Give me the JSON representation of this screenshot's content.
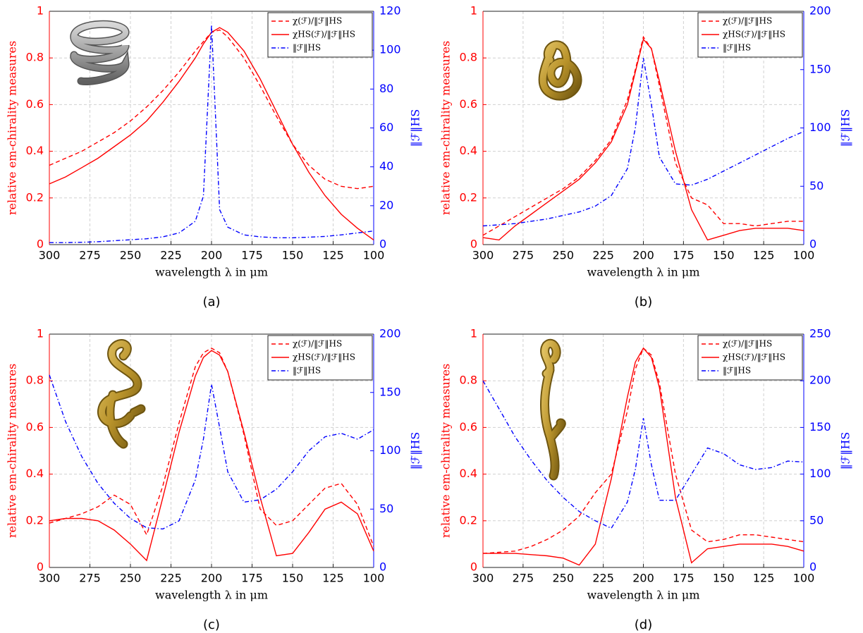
{
  "chart_data": [
    {
      "type": "line",
      "caption": "(a)",
      "xlabel": "wavelength λ in μm",
      "ylabel": "relative em-chirality measures",
      "y2label": "‖ℱ‖HS",
      "x": [
        300,
        290,
        280,
        270,
        260,
        250,
        240,
        230,
        220,
        210,
        205,
        200,
        195,
        190,
        180,
        170,
        160,
        150,
        140,
        130,
        120,
        110,
        100
      ],
      "xlim": [
        300,
        100
      ],
      "xticks": [
        300,
        275,
        250,
        225,
        200,
        175,
        150,
        125,
        100
      ],
      "ylim": [
        0,
        1
      ],
      "yticks": [
        0,
        0.2,
        0.4,
        0.6,
        0.8,
        1
      ],
      "y2lim": [
        0,
        120
      ],
      "y2ticks": [
        0,
        20,
        40,
        60,
        80,
        100,
        120
      ],
      "grid": true,
      "legend": "upper right",
      "series": [
        {
          "name": "χ(ℱ)/‖ℱ‖HS",
          "color": "#ff0000",
          "linestyle": "dashed",
          "values": [
            0.34,
            0.37,
            0.4,
            0.44,
            0.48,
            0.53,
            0.59,
            0.66,
            0.74,
            0.83,
            0.87,
            0.91,
            0.92,
            0.89,
            0.8,
            0.68,
            0.55,
            0.43,
            0.34,
            0.28,
            0.25,
            0.24,
            0.25
          ]
        },
        {
          "name": "χHS(ℱ)/‖ℱ‖HS",
          "color": "#ff0000",
          "linestyle": "solid",
          "values": [
            0.26,
            0.29,
            0.33,
            0.37,
            0.42,
            0.47,
            0.53,
            0.61,
            0.7,
            0.8,
            0.86,
            0.91,
            0.93,
            0.91,
            0.83,
            0.71,
            0.57,
            0.43,
            0.31,
            0.21,
            0.13,
            0.07,
            0.02
          ]
        },
        {
          "name": "‖ℱ‖HS",
          "color": "#0000ff",
          "linestyle": "dashdot",
          "axis": "y2",
          "values": [
            1,
            1,
            1.2,
            1.5,
            2,
            2.5,
            3,
            4,
            6,
            12,
            25,
            113,
            18,
            9,
            5,
            4,
            3.5,
            3.5,
            3.8,
            4.2,
            5,
            6,
            7
          ]
        }
      ]
    },
    {
      "type": "line",
      "caption": "(b)",
      "xlabel": "wavelength λ in μm",
      "ylabel": "relative em-chirality measures",
      "y2label": "‖ℱ‖HS",
      "x": [
        300,
        290,
        280,
        270,
        260,
        250,
        240,
        230,
        220,
        210,
        205,
        200,
        195,
        190,
        180,
        170,
        160,
        150,
        140,
        130,
        120,
        110,
        100
      ],
      "xlim": [
        300,
        100
      ],
      "xticks": [
        300,
        275,
        250,
        225,
        200,
        175,
        150,
        125,
        100
      ],
      "ylim": [
        0,
        1
      ],
      "yticks": [
        0,
        0.2,
        0.4,
        0.6,
        0.8,
        1
      ],
      "y2lim": [
        0,
        200
      ],
      "y2ticks": [
        0,
        50,
        100,
        150,
        200
      ],
      "grid": true,
      "legend": "upper right",
      "series": [
        {
          "name": "χ(ℱ)/‖ℱ‖HS",
          "color": "#ff0000",
          "linestyle": "dashed",
          "values": [
            0.04,
            0.08,
            0.12,
            0.16,
            0.2,
            0.24,
            0.29,
            0.36,
            0.45,
            0.62,
            0.75,
            0.89,
            0.84,
            0.68,
            0.35,
            0.2,
            0.17,
            0.09,
            0.09,
            0.08,
            0.09,
            0.1,
            0.1
          ]
        },
        {
          "name": "χHS(ℱ)/‖ℱ‖HS",
          "color": "#ff0000",
          "linestyle": "solid",
          "values": [
            0.03,
            0.02,
            0.08,
            0.13,
            0.18,
            0.23,
            0.28,
            0.35,
            0.44,
            0.6,
            0.74,
            0.88,
            0.84,
            0.7,
            0.4,
            0.15,
            0.02,
            0.04,
            0.06,
            0.07,
            0.07,
            0.07,
            0.06
          ]
        },
        {
          "name": "‖ℱ‖HS",
          "color": "#0000ff",
          "linestyle": "dashdot",
          "axis": "y2",
          "values": [
            16,
            17,
            18,
            20,
            22,
            25,
            28,
            33,
            42,
            65,
            100,
            160,
            120,
            75,
            52,
            51,
            56,
            63,
            70,
            77,
            84,
            91,
            97
          ]
        }
      ]
    },
    {
      "type": "line",
      "caption": "(c)",
      "xlabel": "wavelength λ in μm",
      "ylabel": "relative em-chirality measures",
      "y2label": "‖ℱ‖HS",
      "x": [
        300,
        290,
        280,
        270,
        260,
        250,
        240,
        230,
        220,
        210,
        205,
        200,
        195,
        190,
        180,
        170,
        160,
        150,
        140,
        130,
        120,
        110,
        100
      ],
      "xlim": [
        300,
        100
      ],
      "xticks": [
        300,
        275,
        250,
        225,
        200,
        175,
        150,
        125,
        100
      ],
      "ylim": [
        0,
        1
      ],
      "yticks": [
        0,
        0.2,
        0.4,
        0.6,
        0.8,
        1
      ],
      "y2lim": [
        0,
        200
      ],
      "y2ticks": [
        0,
        50,
        100,
        150,
        200
      ],
      "grid": true,
      "legend": "upper right",
      "series": [
        {
          "name": "χ(ℱ)/‖ℱ‖HS",
          "color": "#ff0000",
          "linestyle": "dashed",
          "values": [
            0.19,
            0.21,
            0.23,
            0.26,
            0.31,
            0.27,
            0.14,
            0.35,
            0.62,
            0.86,
            0.92,
            0.94,
            0.92,
            0.84,
            0.57,
            0.25,
            0.18,
            0.2,
            0.27,
            0.34,
            0.36,
            0.27,
            0.09
          ]
        },
        {
          "name": "χHS(ℱ)/‖ℱ‖HS",
          "color": "#ff0000",
          "linestyle": "solid",
          "values": [
            0.2,
            0.21,
            0.21,
            0.2,
            0.16,
            0.1,
            0.03,
            0.3,
            0.58,
            0.82,
            0.9,
            0.93,
            0.91,
            0.84,
            0.58,
            0.3,
            0.05,
            0.06,
            0.15,
            0.25,
            0.28,
            0.23,
            0.07
          ]
        },
        {
          "name": "‖ℱ‖HS",
          "color": "#0000ff",
          "linestyle": "dashdot",
          "axis": "y2",
          "values": [
            165,
            125,
            95,
            72,
            55,
            42,
            34,
            33,
            40,
            75,
            110,
            157,
            120,
            82,
            56,
            58,
            67,
            82,
            100,
            112,
            115,
            110,
            118
          ]
        }
      ]
    },
    {
      "type": "line",
      "caption": "(d)",
      "xlabel": "wavelength λ in μm",
      "ylabel": "relative em-chirality measures",
      "y2label": "‖ℱ‖HS",
      "x": [
        300,
        290,
        280,
        270,
        260,
        250,
        240,
        230,
        220,
        210,
        205,
        200,
        195,
        190,
        180,
        170,
        160,
        150,
        140,
        130,
        120,
        110,
        100
      ],
      "xlim": [
        300,
        100
      ],
      "xticks": [
        300,
        275,
        250,
        225,
        200,
        175,
        150,
        125,
        100
      ],
      "ylim": [
        0,
        1
      ],
      "yticks": [
        0,
        0.2,
        0.4,
        0.6,
        0.8,
        1
      ],
      "y2lim": [
        0,
        250
      ],
      "y2ticks": [
        0,
        50,
        100,
        150,
        200,
        250
      ],
      "grid": true,
      "legend": "upper right",
      "series": [
        {
          "name": "χ(ℱ)/‖ℱ‖HS",
          "color": "#ff0000",
          "linestyle": "dashed",
          "values": [
            0.06,
            0.065,
            0.07,
            0.09,
            0.12,
            0.16,
            0.22,
            0.32,
            0.4,
            0.67,
            0.85,
            0.94,
            0.91,
            0.79,
            0.4,
            0.16,
            0.11,
            0.12,
            0.14,
            0.14,
            0.13,
            0.12,
            0.11
          ]
        },
        {
          "name": "χHS(ℱ)/‖ℱ‖HS",
          "color": "#ff0000",
          "linestyle": "solid",
          "values": [
            0.06,
            0.06,
            0.06,
            0.055,
            0.05,
            0.04,
            0.01,
            0.1,
            0.38,
            0.73,
            0.88,
            0.94,
            0.9,
            0.77,
            0.3,
            0.02,
            0.08,
            0.09,
            0.1,
            0.1,
            0.1,
            0.09,
            0.07
          ]
        },
        {
          "name": "‖ℱ‖HS",
          "color": "#0000ff",
          "linestyle": "dashdot",
          "axis": "y2",
          "values": [
            200,
            170,
            140,
            115,
            93,
            75,
            60,
            50,
            42,
            70,
            105,
            160,
            110,
            72,
            72,
            100,
            128,
            122,
            110,
            105,
            107,
            114,
            113
          ]
        }
      ]
    }
  ]
}
